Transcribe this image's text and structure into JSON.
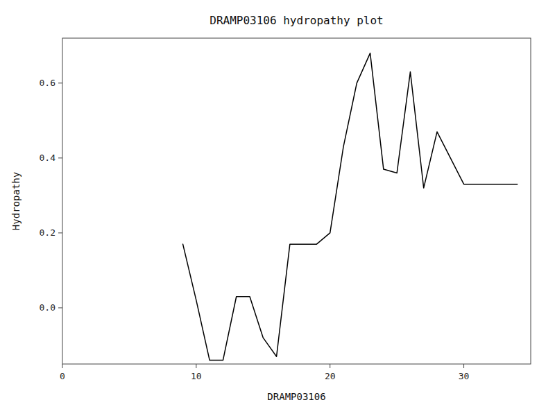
{
  "chart_data": {
    "type": "line",
    "title": "DRAMP03106 hydropathy plot",
    "xlabel": "DRAMP03106",
    "ylabel": "Hydropathy",
    "x": [
      9,
      10,
      11,
      12,
      13,
      14,
      15,
      16,
      17,
      18,
      19,
      20,
      21,
      22,
      23,
      24,
      25,
      26,
      27,
      28,
      29,
      30,
      34
    ],
    "values": [
      0.17,
      0.02,
      -0.14,
      -0.14,
      0.03,
      0.03,
      -0.08,
      -0.13,
      0.17,
      0.17,
      0.17,
      0.2,
      0.43,
      0.6,
      0.68,
      0.37,
      0.36,
      0.63,
      0.32,
      0.47,
      0.4,
      0.33,
      0.33
    ],
    "color": "black",
    "xlim": [
      0,
      35
    ],
    "ylim": [
      -0.15,
      0.72
    ],
    "xticks": [
      0,
      10,
      20,
      30
    ],
    "yticks": [
      {
        "value": 0.0,
        "label": "0.0"
      },
      0.2,
      0.4,
      0.6
    ]
  }
}
